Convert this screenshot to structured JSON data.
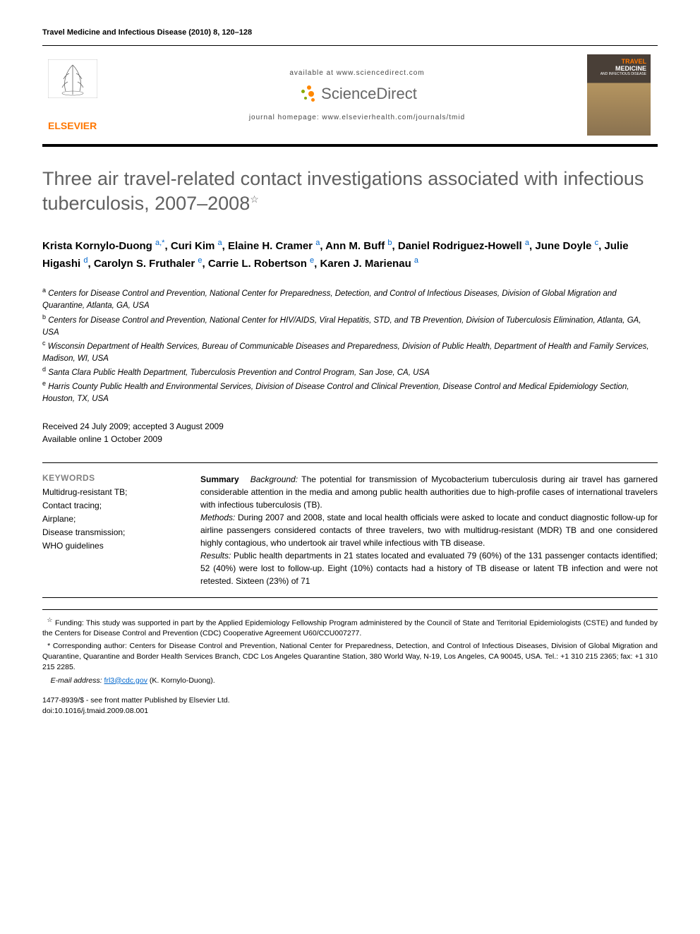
{
  "journal_header": "Travel Medicine and Infectious Disease (2010) 8, 120–128",
  "banner": {
    "available_text": "available at www.sciencedirect.com",
    "sciencedirect": "ScienceDirect",
    "homepage": "journal homepage: www.elsevierhealth.com/journals/tmid",
    "elsevier": "ELSEVIER",
    "cover_travel": "TRAVEL",
    "cover_medicine": "MEDICINE",
    "cover_sub": "AND INFECTIOUS DISEASE"
  },
  "title": "Three air travel-related contact investigations associated with infectious tuberculosis, 2007–2008",
  "title_star": "☆",
  "authors": [
    {
      "name": "Krista Kornylo-Duong",
      "marks": "a,*"
    },
    {
      "name": "Curi Kim",
      "marks": "a"
    },
    {
      "name": "Elaine H. Cramer",
      "marks": "a"
    },
    {
      "name": "Ann M. Buff",
      "marks": "b"
    },
    {
      "name": "Daniel Rodriguez-Howell",
      "marks": "a"
    },
    {
      "name": "June Doyle",
      "marks": "c"
    },
    {
      "name": "Julie Higashi",
      "marks": "d"
    },
    {
      "name": "Carolyn S. Fruthaler",
      "marks": "e"
    },
    {
      "name": "Carrie L. Robertson",
      "marks": "e"
    },
    {
      "name": "Karen J. Marienau",
      "marks": "a"
    }
  ],
  "affiliations": [
    {
      "letter": "a",
      "text": "Centers for Disease Control and Prevention, National Center for Preparedness, Detection, and Control of Infectious Diseases, Division of Global Migration and Quarantine, Atlanta, GA, USA"
    },
    {
      "letter": "b",
      "text": "Centers for Disease Control and Prevention, National Center for HIV/AIDS, Viral Hepatitis, STD, and TB Prevention, Division of Tuberculosis Elimination, Atlanta, GA, USA"
    },
    {
      "letter": "c",
      "text": "Wisconsin Department of Health Services, Bureau of Communicable Diseases and Preparedness, Division of Public Health, Department of Health and Family Services, Madison, WI, USA"
    },
    {
      "letter": "d",
      "text": "Santa Clara Public Health Department, Tuberculosis Prevention and Control Program, San Jose, CA, USA"
    },
    {
      "letter": "e",
      "text": "Harris County Public Health and Environmental Services, Division of Disease Control and Clinical Prevention, Disease Control and Medical Epidemiology Section, Houston, TX, USA"
    }
  ],
  "dates": {
    "received_accepted": "Received 24 July 2009; accepted 3 August 2009",
    "online": "Available online 1 October 2009"
  },
  "keywords": {
    "heading": "KEYWORDS",
    "items": [
      "Multidrug-resistant TB;",
      "Contact tracing;",
      "Airplane;",
      "Disease transmission;",
      "WHO guidelines"
    ]
  },
  "summary": {
    "label": "Summary",
    "background_label": "Background:",
    "background": " The potential for transmission of Mycobacterium tuberculosis during air travel has garnered considerable attention in the media and among public health authorities due to high-profile cases of international travelers with infectious tuberculosis (TB).",
    "methods_label": "Methods:",
    "methods": " During 2007 and 2008, state and local health officials were asked to locate and conduct diagnostic follow-up for airline passengers considered contacts of three travelers, two with multidrug-resistant (MDR) TB and one considered highly contagious, who undertook air travel while infectious with TB disease.",
    "results_label": "Results:",
    "results": " Public health departments in 21 states located and evaluated 79 (60%) of the 131 passenger contacts identified; 52 (40%) were lost to follow-up. Eight (10%) contacts had a history of TB disease or latent TB infection and were not retested. Sixteen (23%) of 71"
  },
  "footnotes": {
    "funding_star": "☆",
    "funding": " Funding: This study was supported in part by the Applied Epidemiology Fellowship Program administered by the Council of State and Territorial Epidemiologists (CSTE) and funded by the Centers for Disease Control and Prevention (CDC) Cooperative Agreement U60/CCU007277.",
    "corresponding": "* Corresponding author: Centers for Disease Control and Prevention, National Center for Preparedness, Detection, and Control of Infectious Diseases, Division of Global Migration and Quarantine, Quarantine and Border Health Services Branch, CDC Los Angeles Quarantine Station, 380 World Way, N-19, Los Angeles, CA 90045, USA. Tel.: +1 310 215 2365; fax: +1 310 215 2285.",
    "email_label": "E-mail address:",
    "email": "frl3@cdc.gov",
    "email_suffix": " (K. Kornylo-Duong)."
  },
  "copyright": {
    "line1": "1477-8939/$ - see front matter Published by Elsevier Ltd.",
    "line2": "doi:10.1016/j.tmaid.2009.08.001"
  },
  "colors": {
    "title_gray": "#606060",
    "aff_blue": "#0066cc",
    "keywords_gray": "#808080",
    "elsevier_orange": "#ff7700",
    "sd_orange": "#ff8800",
    "sd_green": "#88aa00"
  }
}
